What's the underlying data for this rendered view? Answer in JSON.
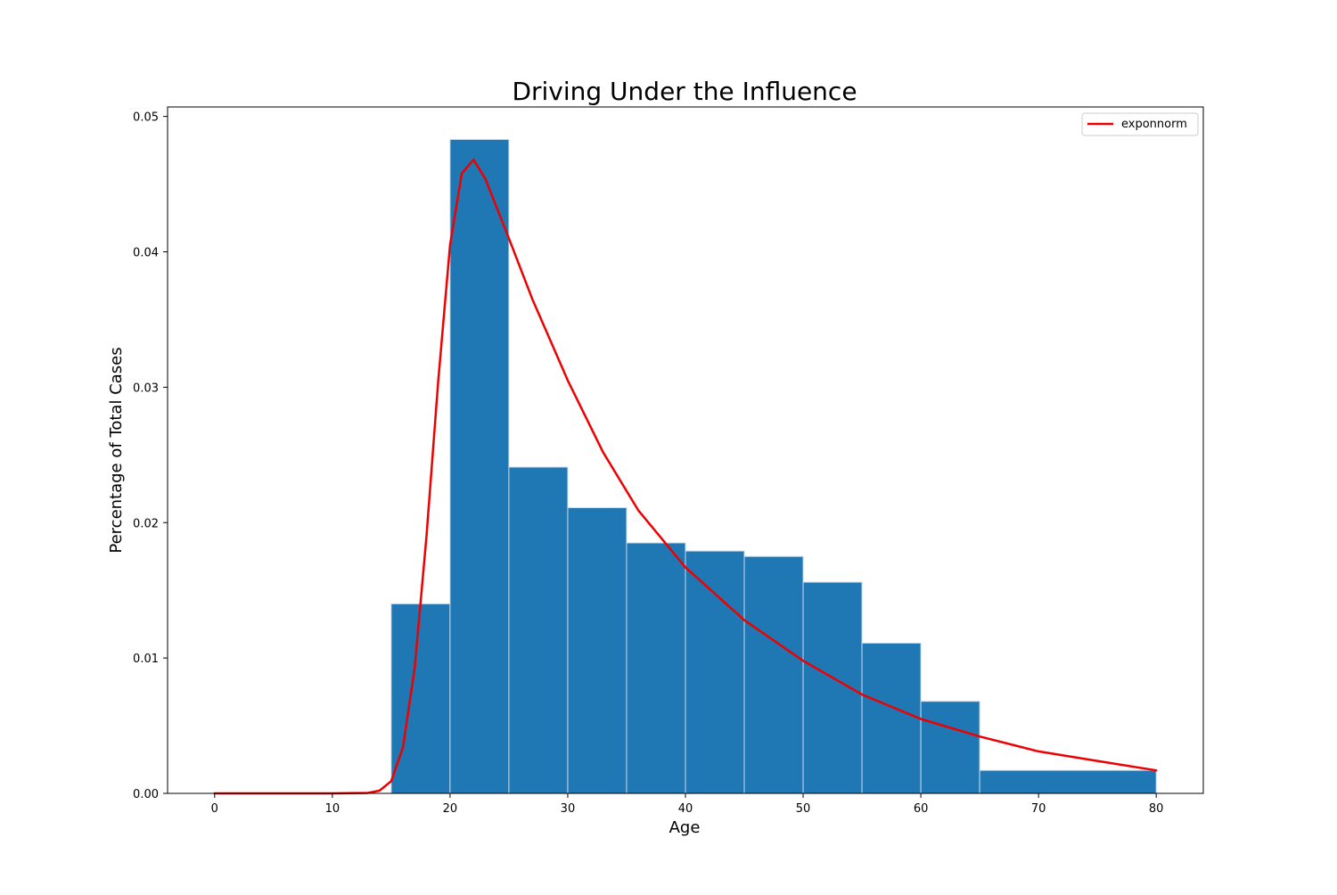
{
  "chart_data": {
    "type": "bar",
    "title": "Driving Under the Influence",
    "xlabel": "Age",
    "ylabel": "Percentage of Total Cases",
    "xlim": [
      -4,
      84
    ],
    "ylim": [
      0,
      0.0507
    ],
    "xticks": [
      0,
      10,
      20,
      30,
      40,
      50,
      60,
      70,
      80
    ],
    "xtick_labels": [
      "0",
      "10",
      "20",
      "30",
      "40",
      "50",
      "60",
      "70",
      "80"
    ],
    "yticks": [
      0.0,
      0.01,
      0.02,
      0.03,
      0.04,
      0.05
    ],
    "ytick_labels": [
      "0.00",
      "0.01",
      "0.02",
      "0.03",
      "0.04",
      "0.05"
    ],
    "grid": false,
    "legend_position": "top-right",
    "histogram": {
      "bin_edges": [
        15,
        20,
        25,
        30,
        35,
        40,
        45,
        50,
        55,
        60,
        65,
        80
      ],
      "values": [
        0.014,
        0.0483,
        0.0241,
        0.0211,
        0.0185,
        0.0179,
        0.0175,
        0.0156,
        0.0111,
        0.0068,
        0.0017
      ],
      "color": "#1f77b4",
      "edgecolor": "#c7dbea"
    },
    "series": [
      {
        "name": "exponnorm",
        "type": "line",
        "color": "#ee0000",
        "x": [
          0,
          10,
          13,
          14,
          15,
          16,
          17,
          18,
          19,
          20,
          21,
          22,
          23,
          24,
          25,
          27,
          30,
          33,
          36,
          40,
          45,
          50,
          55,
          60,
          65,
          70,
          75,
          80
        ],
        "y": [
          0.0,
          0.0,
          3e-05,
          0.0002,
          0.0009,
          0.0034,
          0.0093,
          0.019,
          0.0305,
          0.0405,
          0.0458,
          0.0468,
          0.0454,
          0.0432,
          0.041,
          0.0365,
          0.0305,
          0.0252,
          0.0209,
          0.0167,
          0.0128,
          0.0098,
          0.0073,
          0.0055,
          0.0042,
          0.0031,
          0.0024,
          0.0017
        ]
      }
    ]
  }
}
